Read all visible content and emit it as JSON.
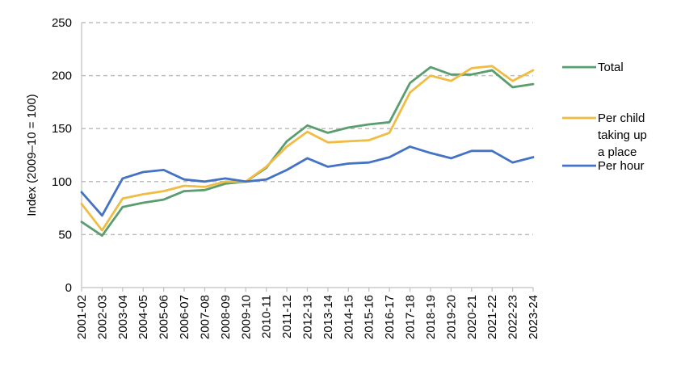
{
  "chart_data": {
    "type": "line",
    "title": "",
    "xlabel": "",
    "ylabel": "Index (2009–10 = 100)",
    "ylim": [
      0,
      250
    ],
    "yticks": [
      0,
      50,
      100,
      150,
      200,
      250
    ],
    "grid": "horizontal dashed",
    "legend_position": "right",
    "categories": [
      "2001-02",
      "2002-03",
      "2003-04",
      "2004-05",
      "2005-06",
      "2006-07",
      "2007-08",
      "2008-09",
      "2009-10",
      "2010-11",
      "2011-12",
      "2012-13",
      "2013-14",
      "2014-15",
      "2015-16",
      "2016-17",
      "2017-18",
      "2018-19",
      "2019-20",
      "2020-21",
      "2021-22",
      "2022-23",
      "2023-24"
    ],
    "series": [
      {
        "name": "Total",
        "color": "#5a9e6f",
        "values": [
          62,
          49,
          76,
          80,
          83,
          91,
          92,
          98,
          100,
          113,
          138,
          153,
          146,
          151,
          154,
          156,
          193,
          208,
          201,
          201,
          205,
          189,
          192
        ]
      },
      {
        "name": "Per child taking up a place",
        "color": "#f0bc42",
        "values": [
          79,
          54,
          84,
          88,
          91,
          96,
          95,
          100,
          100,
          114,
          133,
          147,
          137,
          138,
          139,
          146,
          184,
          200,
          195,
          207,
          209,
          195,
          205
        ]
      },
      {
        "name": "Per hour",
        "color": "#4472c4",
        "values": [
          90,
          68,
          103,
          109,
          111,
          102,
          100,
          103,
          100,
          102,
          111,
          122,
          114,
          117,
          118,
          123,
          133,
          127,
          122,
          129,
          129,
          118,
          123
        ]
      }
    ],
    "legend": [
      {
        "lines": [
          "Total"
        ]
      },
      {
        "lines": [
          "Per child",
          "taking up",
          "a place"
        ]
      },
      {
        "lines": [
          "Per hour"
        ]
      }
    ]
  }
}
